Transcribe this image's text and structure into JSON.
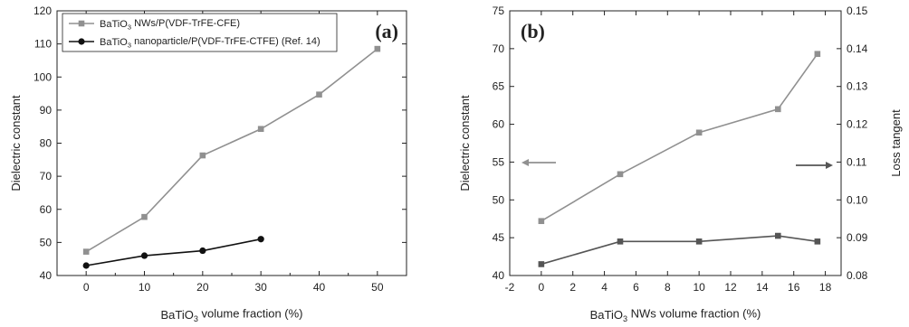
{
  "chart_data": [
    {
      "type": "line",
      "panel_label": "(a)",
      "xlabel_pre": "BaTiO",
      "xlabel_sub": "3",
      "xlabel_post": " volume fraction (%)",
      "ylabel": "Dielectric constant",
      "xlim": [
        -5,
        55
      ],
      "ylim": [
        40,
        120
      ],
      "xticks": [
        0,
        10,
        20,
        30,
        40,
        50
      ],
      "yticks": [
        40,
        50,
        60,
        70,
        80,
        90,
        100,
        110,
        120
      ],
      "legend_position": "top-left",
      "series": [
        {
          "name_pre": "BaTiO",
          "name_sub": "3",
          "name_post": " NWs/P(VDF-TrFE-CFE)",
          "color": "#909090",
          "marker": "square",
          "x": [
            0,
            10,
            20,
            30,
            40,
            50
          ],
          "y": [
            47.2,
            57.7,
            76.3,
            84.3,
            94.7,
            108.5
          ]
        },
        {
          "name_pre": "BaTiO",
          "name_sub": "3",
          "name_post": " nanoparticle/P(VDF-TrFE-CTFE) (Ref. 14)",
          "color": "#111111",
          "marker": "circle",
          "x": [
            0,
            10,
            20,
            30
          ],
          "y": [
            43.0,
            46.0,
            47.5,
            51.0
          ]
        }
      ]
    },
    {
      "type": "line",
      "panel_label": "(b)",
      "xlabel_pre": "BaTiO",
      "xlabel_sub": "3",
      "xlabel_post": " NWs volume fraction (%)",
      "ylabel": "Dielectric constant",
      "y2label": "Loss tangent",
      "xlim": [
        -2,
        19
      ],
      "ylim": [
        40,
        75
      ],
      "y2lim": [
        0.08,
        0.15
      ],
      "xticks": [
        -2,
        0,
        2,
        4,
        6,
        8,
        10,
        12,
        14,
        16,
        18
      ],
      "yticks": [
        40,
        45,
        50,
        55,
        60,
        65,
        70,
        75
      ],
      "y2ticks": [
        "0.08",
        "0.09",
        "0.10",
        "0.11",
        "0.12",
        "0.13",
        "0.14",
        "0.15"
      ],
      "series": [
        {
          "axis": "left",
          "color": "#909090",
          "marker": "square",
          "x": [
            0,
            5,
            10,
            15,
            17.5
          ],
          "y": [
            47.2,
            53.4,
            58.9,
            62.0,
            69.3
          ]
        },
        {
          "axis": "right",
          "color": "#555555",
          "marker": "square",
          "x": [
            0,
            5,
            10,
            15,
            17.5
          ],
          "y": [
            0.083,
            0.089,
            0.089,
            0.0905,
            0.089
          ]
        }
      ],
      "arrows": [
        {
          "points_to": "left",
          "color": "#909090"
        },
        {
          "points_to": "right",
          "color": "#555555"
        }
      ]
    }
  ]
}
